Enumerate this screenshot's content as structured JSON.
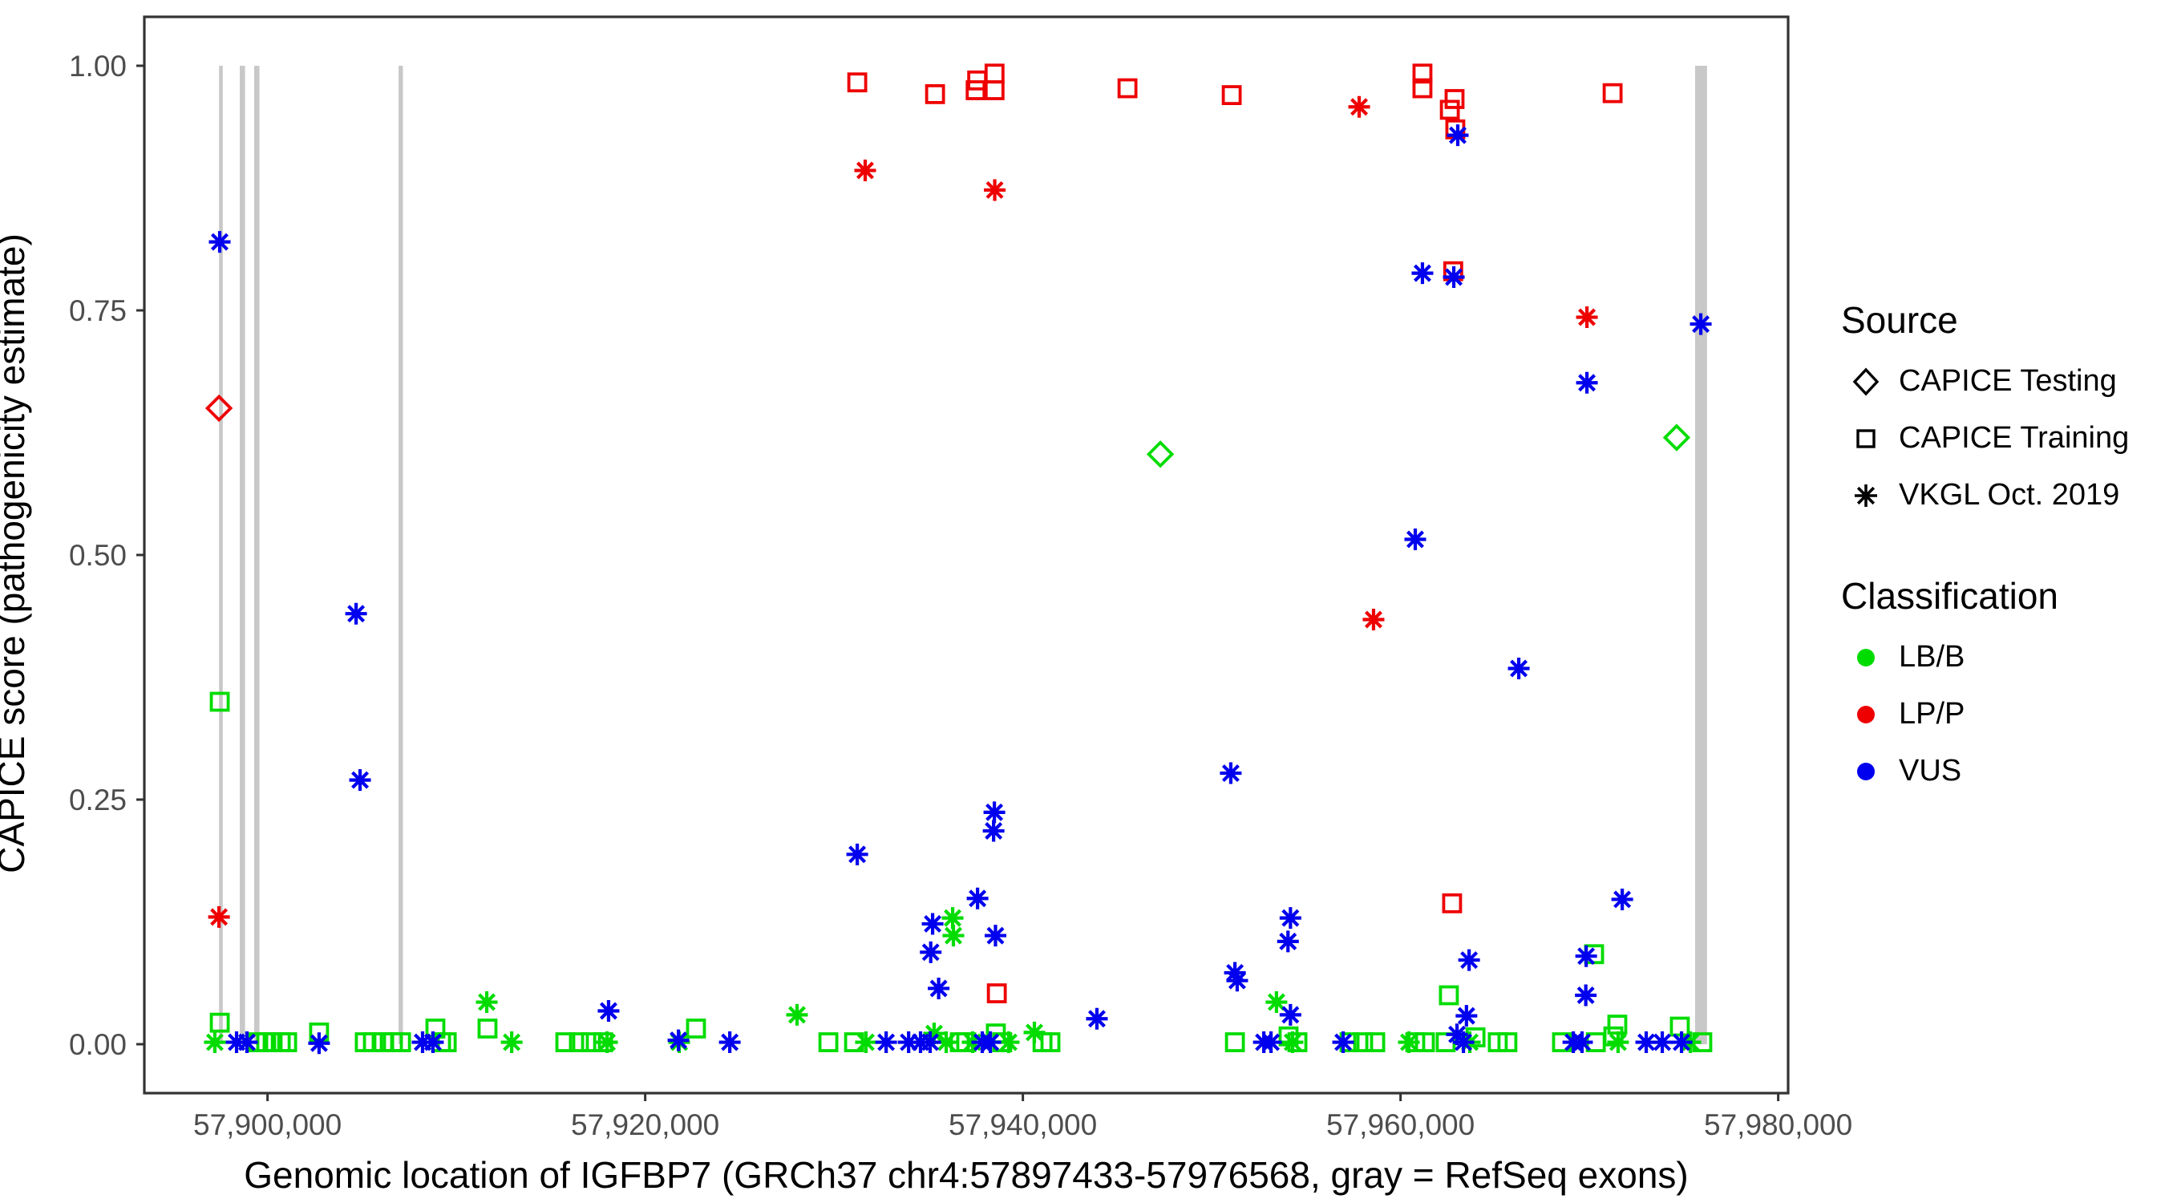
{
  "figure": {
    "y_axis_title": "CAPICE score (pathogenicity estimate)",
    "x_axis_title": "Genomic location of IGFBP7 (GRCh37 chr4:57897433-57976568, gray = RefSeq exons)"
  },
  "legend": {
    "source": {
      "title": "Source",
      "items": [
        {
          "label": "CAPICE Testing",
          "glyph": "diamond-outline-icon"
        },
        {
          "label": "CAPICE Training",
          "glyph": "square-outline-icon"
        },
        {
          "label": "VKGL Oct. 2019",
          "glyph": "asterisk-icon"
        }
      ]
    },
    "classification": {
      "title": "Classification",
      "items": [
        {
          "label": "LB/B",
          "color": "#00DC00"
        },
        {
          "label": "LP/P",
          "color": "#EE0000"
        },
        {
          "label": "VUS",
          "color": "#0000EE"
        }
      ]
    }
  },
  "chart_data": {
    "type": "scatter",
    "title": "",
    "xlabel": "Genomic location of IGFBP7 (GRCh37 chr4:57897433-57976568, gray = RefSeq exons)",
    "ylabel": "CAPICE score (pathogenicity estimate)",
    "xlim": [
      57893476,
      57980525
    ],
    "ylim": [
      -0.05,
      1.05
    ],
    "grid": false,
    "x_tick_values": [
      57900000,
      57920000,
      57940000,
      57960000,
      57980000
    ],
    "x_tick_labels": [
      "57,900,000",
      "57,920,000",
      "57,940,000",
      "57,960,000",
      "57,980,000"
    ],
    "y_tick_values": [
      0.0,
      0.25,
      0.5,
      0.75,
      1.0
    ],
    "y_tick_labels": [
      "0.00",
      "0.25",
      "0.50",
      "0.75",
      "1.00"
    ],
    "colors": {
      "LB/B": "#00DC00",
      "LP/P": "#EE0000",
      "VUS": "#0000EE",
      "exon": "#C8C8C8",
      "axis_text": "#4D4D4D",
      "axis_line": "#333333"
    },
    "shape_by_source": {
      "testing": "diamond",
      "training": "square",
      "vkgl": "asterisk"
    },
    "refseq_exons": [
      [
        57897433,
        57897630
      ],
      [
        57898530,
        57898810
      ],
      [
        57899290,
        57899570
      ],
      [
        57906940,
        57907170
      ],
      [
        57975600,
        57976230
      ]
    ],
    "point_format": [
      "position",
      "score",
      "classification",
      "source"
    ],
    "points": [
      [
        57897210,
        0.002,
        "LB/B",
        "vkgl"
      ],
      [
        57897430,
        0.65,
        "LP/P",
        "testing"
      ],
      [
        57897430,
        0.13,
        "LP/P",
        "vkgl"
      ],
      [
        57897468,
        0.82,
        "VUS",
        "vkgl"
      ],
      [
        57897470,
        0.35,
        "LB/B",
        "training"
      ],
      [
        57897470,
        0.022,
        "LB/B",
        "training"
      ],
      [
        57898360,
        0.002,
        "VUS",
        "vkgl"
      ],
      [
        57898910,
        0.002,
        "VUS",
        "vkgl"
      ],
      [
        57899510,
        0.002,
        "LB/B",
        "training"
      ],
      [
        57899930,
        0.002,
        "LB/B",
        "training"
      ],
      [
        57900270,
        0.002,
        "LB/B",
        "training"
      ],
      [
        57900700,
        0.002,
        "LB/B",
        "training"
      ],
      [
        57901040,
        0.002,
        "LB/B",
        "training"
      ],
      [
        57902730,
        0.012,
        "LB/B",
        "training"
      ],
      [
        57902730,
        0.001,
        "VUS",
        "vkgl"
      ],
      [
        57904690,
        0.44,
        "VUS",
        "vkgl"
      ],
      [
        57904900,
        0.27,
        "VUS",
        "vkgl"
      ],
      [
        57905150,
        0.002,
        "LB/B",
        "training"
      ],
      [
        57905580,
        0.002,
        "LB/B",
        "training"
      ],
      [
        57906130,
        0.002,
        "LB/B",
        "training"
      ],
      [
        57906640,
        0.002,
        "LB/B",
        "training"
      ],
      [
        57907070,
        0.002,
        "LB/B",
        "training"
      ],
      [
        57908210,
        0.002,
        "VUS",
        "vkgl"
      ],
      [
        57908760,
        0.002,
        "VUS",
        "vkgl"
      ],
      [
        57908890,
        0.016,
        "LB/B",
        "training"
      ],
      [
        57909190,
        0.002,
        "LB/B",
        "training"
      ],
      [
        57909490,
        0.002,
        "LB/B",
        "training"
      ],
      [
        57911610,
        0.043,
        "LB/B",
        "vkgl"
      ],
      [
        57911650,
        0.016,
        "LB/B",
        "training"
      ],
      [
        57912930,
        0.002,
        "LB/B",
        "vkgl"
      ],
      [
        57915770,
        0.002,
        "LB/B",
        "training"
      ],
      [
        57916490,
        0.002,
        "LB/B",
        "training"
      ],
      [
        57917130,
        0.002,
        "LB/B",
        "training"
      ],
      [
        57917770,
        0.002,
        "LB/B",
        "training"
      ],
      [
        57917980,
        0.002,
        "LB/B",
        "vkgl"
      ],
      [
        57918060,
        0.034,
        "VUS",
        "vkgl"
      ],
      [
        57921760,
        0.004,
        "VUS",
        "vkgl"
      ],
      [
        57921800,
        0.002,
        "LB/B",
        "vkgl"
      ],
      [
        57922690,
        0.016,
        "LB/B",
        "training"
      ],
      [
        57924480,
        0.002,
        "VUS",
        "vkgl"
      ],
      [
        57928040,
        0.03,
        "LB/B",
        "vkgl"
      ],
      [
        57929700,
        0.002,
        "LB/B",
        "training"
      ],
      [
        57931060,
        0.002,
        "LB/B",
        "training"
      ],
      [
        57931230,
        0.983,
        "LP/P",
        "training"
      ],
      [
        57931230,
        0.194,
        "VUS",
        "vkgl"
      ],
      [
        57931650,
        0.893,
        "LP/P",
        "vkgl"
      ],
      [
        57931690,
        0.002,
        "LB/B",
        "vkgl"
      ],
      [
        57932760,
        0.002,
        "VUS",
        "vkgl"
      ],
      [
        57933950,
        0.002,
        "VUS",
        "vkgl"
      ],
      [
        57934580,
        0.002,
        "VUS",
        "vkgl"
      ],
      [
        57935090,
        0.002,
        "VUS",
        "vkgl"
      ],
      [
        57935120,
        0.094,
        "VUS",
        "vkgl"
      ],
      [
        57935220,
        0.123,
        "VUS",
        "vkgl"
      ],
      [
        57935300,
        0.011,
        "LB/B",
        "vkgl"
      ],
      [
        57935350,
        0.971,
        "LP/P",
        "training"
      ],
      [
        57935540,
        0.057,
        "VUS",
        "vkgl"
      ],
      [
        57935940,
        0.002,
        "LB/B",
        "vkgl"
      ],
      [
        57936280,
        0.129,
        "LB/B",
        "vkgl"
      ],
      [
        57936320,
        0.111,
        "LB/B",
        "vkgl"
      ],
      [
        57936660,
        0.002,
        "LB/B",
        "training"
      ],
      [
        57937000,
        0.002,
        "LB/B",
        "training"
      ],
      [
        57937340,
        0.002,
        "LB/B",
        "vkgl"
      ],
      [
        57937500,
        0.975,
        "LP/P",
        "training"
      ],
      [
        57937580,
        0.985,
        "LP/P",
        "training"
      ],
      [
        57937600,
        0.149,
        "VUS",
        "vkgl"
      ],
      [
        57937850,
        0.002,
        "VUS",
        "vkgl"
      ],
      [
        57938280,
        0.002,
        "VUS",
        "vkgl"
      ],
      [
        57938450,
        0.218,
        "VUS",
        "vkgl"
      ],
      [
        57938490,
        0.237,
        "VUS",
        "vkgl"
      ],
      [
        57938500,
        0.992,
        "LP/P",
        "training"
      ],
      [
        57938500,
        0.975,
        "LP/P",
        "training"
      ],
      [
        57938510,
        0.873,
        "LP/P",
        "vkgl"
      ],
      [
        57938550,
        0.111,
        "VUS",
        "vkgl"
      ],
      [
        57938570,
        0.011,
        "LB/B",
        "training"
      ],
      [
        57938620,
        0.052,
        "LP/P",
        "training"
      ],
      [
        57938910,
        0.002,
        "LB/B",
        "training"
      ],
      [
        57939250,
        0.002,
        "LB/B",
        "vkgl"
      ],
      [
        57940610,
        0.012,
        "LB/B",
        "vkgl"
      ],
      [
        57941040,
        0.002,
        "LB/B",
        "training"
      ],
      [
        57941460,
        0.002,
        "LB/B",
        "training"
      ],
      [
        57943920,
        0.026,
        "VUS",
        "vkgl"
      ],
      [
        57945540,
        0.977,
        "LP/P",
        "training"
      ],
      [
        57947280,
        0.603,
        "LB/B",
        "testing"
      ],
      [
        57951010,
        0.277,
        "VUS",
        "vkgl"
      ],
      [
        57951060,
        0.97,
        "LP/P",
        "training"
      ],
      [
        57951230,
        0.073,
        "VUS",
        "vkgl"
      ],
      [
        57951350,
        0.065,
        "VUS",
        "vkgl"
      ],
      [
        57951230,
        0.002,
        "LB/B",
        "training"
      ],
      [
        57952760,
        0.002,
        "VUS",
        "vkgl"
      ],
      [
        57953140,
        0.002,
        "VUS",
        "vkgl"
      ],
      [
        57953430,
        0.043,
        "LB/B",
        "vkgl"
      ],
      [
        57954040,
        0.105,
        "VUS",
        "vkgl"
      ],
      [
        57954070,
        0.008,
        "LB/B",
        "training"
      ],
      [
        57954170,
        0.129,
        "VUS",
        "vkgl"
      ],
      [
        57954170,
        0.03,
        "VUS",
        "vkgl"
      ],
      [
        57954280,
        0.002,
        "LB/B",
        "vkgl"
      ],
      [
        57954540,
        0.002,
        "LB/B",
        "training"
      ],
      [
        57956960,
        0.002,
        "VUS",
        "vkgl"
      ],
      [
        57957300,
        0.002,
        "LB/B",
        "training"
      ],
      [
        57957810,
        0.958,
        "LP/P",
        "vkgl"
      ],
      [
        57958020,
        0.002,
        "LB/B",
        "training"
      ],
      [
        57958570,
        0.434,
        "LP/P",
        "vkgl"
      ],
      [
        57958660,
        0.002,
        "LB/B",
        "training"
      ],
      [
        57960440,
        0.002,
        "LB/B",
        "vkgl"
      ],
      [
        57960780,
        0.516,
        "VUS",
        "vkgl"
      ],
      [
        57960780,
        0.002,
        "LB/B",
        "training"
      ],
      [
        57961160,
        0.992,
        "LP/P",
        "training"
      ],
      [
        57961160,
        0.977,
        "LP/P",
        "training"
      ],
      [
        57961160,
        0.788,
        "VUS",
        "vkgl"
      ],
      [
        57961290,
        0.002,
        "LB/B",
        "training"
      ],
      [
        57962390,
        0.002,
        "LB/B",
        "training"
      ],
      [
        57962560,
        0.05,
        "LB/B",
        "training"
      ],
      [
        57962610,
        0.955,
        "LP/P",
        "training"
      ],
      [
        57962730,
        0.144,
        "LP/P",
        "training"
      ],
      [
        57962790,
        0.79,
        "LP/P",
        "training"
      ],
      [
        57962820,
        0.784,
        "VUS",
        "vkgl"
      ],
      [
        57962860,
        0.966,
        "LP/P",
        "training"
      ],
      [
        57962900,
        0.935,
        "LP/P",
        "training"
      ],
      [
        57963030,
        0.929,
        "VUS",
        "vkgl"
      ],
      [
        57962990,
        0.01,
        "VUS",
        "vkgl"
      ],
      [
        57963330,
        0.002,
        "VUS",
        "vkgl"
      ],
      [
        57963490,
        0.029,
        "VUS",
        "vkgl"
      ],
      [
        57963630,
        0.086,
        "VUS",
        "vkgl"
      ],
      [
        57963670,
        0.002,
        "LB/B",
        "vkgl"
      ],
      [
        57963970,
        0.007,
        "LB/B",
        "training"
      ],
      [
        57965150,
        0.002,
        "LB/B",
        "training"
      ],
      [
        57965660,
        0.002,
        "LB/B",
        "training"
      ],
      [
        57966260,
        0.384,
        "VUS",
        "vkgl"
      ],
      [
        57968550,
        0.002,
        "LB/B",
        "training"
      ],
      [
        57969150,
        0.002,
        "VUS",
        "vkgl"
      ],
      [
        57969610,
        0.002,
        "VUS",
        "vkgl"
      ],
      [
        57969810,
        0.05,
        "VUS",
        "vkgl"
      ],
      [
        57969830,
        0.09,
        "VUS",
        "vkgl"
      ],
      [
        57969870,
        0.743,
        "LP/P",
        "vkgl"
      ],
      [
        57969870,
        0.676,
        "VUS",
        "vkgl"
      ],
      [
        57970250,
        0.092,
        "LB/B",
        "training"
      ],
      [
        57970340,
        0.002,
        "LB/B",
        "training"
      ],
      [
        57971230,
        0.972,
        "LP/P",
        "training"
      ],
      [
        57971270,
        0.008,
        "LB/B",
        "training"
      ],
      [
        57971480,
        0.02,
        "LB/B",
        "training"
      ],
      [
        57971520,
        0.002,
        "LB/B",
        "vkgl"
      ],
      [
        57971740,
        0.148,
        "VUS",
        "vkgl"
      ],
      [
        57973010,
        0.002,
        "VUS",
        "vkgl"
      ],
      [
        57973860,
        0.002,
        "VUS",
        "vkgl"
      ],
      [
        57974620,
        0.62,
        "LB/B",
        "testing"
      ],
      [
        57974790,
        0.018,
        "LB/B",
        "training"
      ],
      [
        57974880,
        0.002,
        "VUS",
        "vkgl"
      ],
      [
        57975350,
        0.002,
        "LB/B",
        "vkgl"
      ],
      [
        57975900,
        0.736,
        "VUS",
        "vkgl"
      ],
      [
        57975980,
        0.002,
        "LB/B",
        "training"
      ]
    ]
  }
}
